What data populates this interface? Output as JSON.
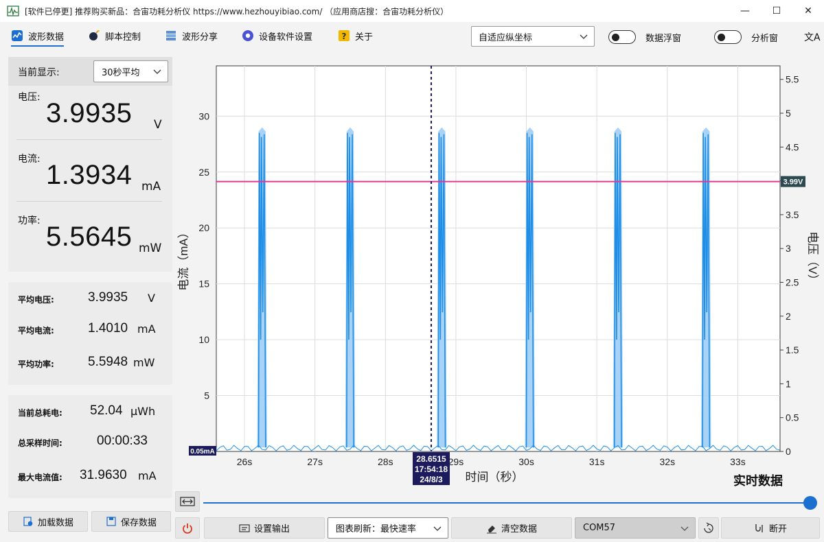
{
  "window": {
    "title": "[软件已停更] 推荐购买新品：合宙功耗分析仪 https://www.hezhouyibiao.com/ （应用商店搜：合宙功耗分析仪）",
    "minimize": "—",
    "maximize": "☐",
    "close": "✕"
  },
  "toolbar": {
    "items": [
      {
        "label": "波形数据",
        "icon": "waveform-icon"
      },
      {
        "label": "脚本控制",
        "icon": "bomb-icon"
      },
      {
        "label": "波形分享",
        "icon": "share-icon"
      },
      {
        "label": "设备软件设置",
        "icon": "gear-icon"
      },
      {
        "label": "关于",
        "icon": "question-icon"
      }
    ],
    "axis_mode": "自适应纵坐标",
    "float_toggle": "数据浮窗",
    "analysis_toggle": "分析窗",
    "translate_icon": "文A"
  },
  "current": {
    "label": "当前显示:",
    "mode": "30秒平均",
    "voltage_label": "电压:",
    "voltage_value": "3.9935",
    "voltage_unit": "V",
    "current_label": "电流:",
    "current_value": "1.3934",
    "current_unit": "mA",
    "power_label": "功率:",
    "power_value": "5.5645",
    "power_unit": "mW"
  },
  "averages": {
    "avg_voltage_label": "平均电压:",
    "avg_voltage_value": "3.9935",
    "avg_voltage_unit": "V",
    "avg_current_label": "平均电流:",
    "avg_current_value": "1.4010",
    "avg_current_unit": "mA",
    "avg_power_label": "平均功率:",
    "avg_power_value": "5.5948",
    "avg_power_unit": "mW"
  },
  "totals": {
    "energy_label": "当前总耗电:",
    "energy_value": "52.04",
    "energy_unit": "μWh",
    "time_label": "总采样时间:",
    "time_value": "00:00:33",
    "max_label": "最大电流值:",
    "max_value": "31.9630",
    "max_unit": "mA"
  },
  "buttons": {
    "load": "加载数据",
    "save": "保存数据",
    "output": "设置输出",
    "refresh": "图表刷新：最快速率",
    "clear": "清空数据",
    "port": "COM57",
    "disconnect": "断开"
  },
  "chart_data": {
    "type": "line",
    "xlabel": "时间（秒）",
    "ylabel_left": "电流（mA）",
    "ylabel_right": "电压（V）",
    "x_range": [
      25.6,
      33.6
    ],
    "x_ticks": [
      "26s",
      "27s",
      "28s",
      "29s",
      "30s",
      "31s",
      "32s",
      "33s"
    ],
    "ylim_left": [
      0,
      34.5
    ],
    "y_ticks_left": [
      "5",
      "10",
      "15",
      "20",
      "25",
      "30"
    ],
    "ylim_right": [
      0,
      5.7
    ],
    "y_ticks_right": [
      "0",
      "0.5",
      "1",
      "1.5",
      "2",
      "2.5",
      "3",
      "3.5",
      "4",
      "4.5",
      "5",
      "5.5"
    ],
    "grid": true,
    "series": [
      {
        "name": "电流",
        "baseline": 0.05,
        "peaks_x": [
          26.25,
          27.5,
          28.8,
          30.05,
          31.3,
          32.55
        ],
        "peak_max": 29.0,
        "peak_mid": 10.0
      },
      {
        "name": "电压",
        "value": 3.99
      }
    ],
    "annotations": {
      "voltage_tag": "3.99V",
      "current_tag": "0.05mA",
      "cursor_x": 28.65,
      "cursor_value": "28.6515",
      "cursor_time": "17:54:18",
      "cursor_date": "24/8/3"
    },
    "colors": {
      "current": "#1e8ee6",
      "current_fill": "#9fcdf5",
      "voltage": "#e0388f",
      "cursor": "#1a1a66",
      "tag_dark": "#1b1b5e",
      "tag_slate": "#2c4a52"
    }
  },
  "status": {
    "realtime": "实时数据"
  }
}
